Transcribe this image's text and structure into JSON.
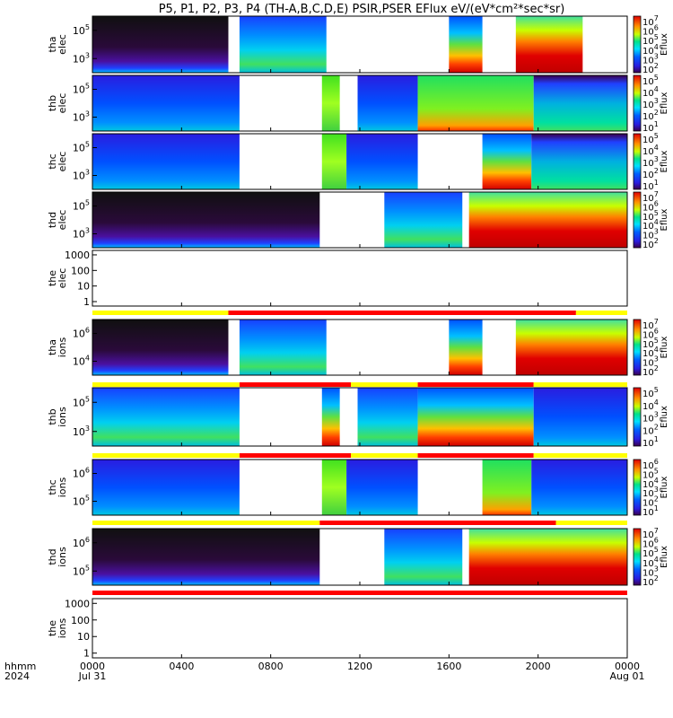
{
  "title": "P5, P1, P2, P3, P4 (TH-A,B,C,D,E) PSIR,PSER EFlux eV/(eV*cm²*sec*sr)",
  "x_axis": {
    "row1_label": "hhmm",
    "row2_label": "2024",
    "ticks": [
      {
        "hour": 0,
        "top": "0000",
        "bottom": "Jul 31"
      },
      {
        "hour": 4,
        "top": "0400",
        "bottom": ""
      },
      {
        "hour": 8,
        "top": "0800",
        "bottom": ""
      },
      {
        "hour": 12,
        "top": "1200",
        "bottom": ""
      },
      {
        "hour": 16,
        "top": "1600",
        "bottom": ""
      },
      {
        "hour": 20,
        "top": "2000",
        "bottom": ""
      },
      {
        "hour": 24,
        "top": "0000",
        "bottom": "Aug 01"
      }
    ]
  },
  "colors": {
    "mode_yellow": "#ffff00",
    "mode_red": "#ff0000",
    "no_data": "#ffffff",
    "colormap": [
      "#3a004d",
      "#5a00a6",
      "#2a1de0",
      "#0060ff",
      "#00b8ff",
      "#00f0f0",
      "#00e08a",
      "#40e020",
      "#c8ff00",
      "#ffd000",
      "#ff7a00",
      "#ff0000",
      "#c00000"
    ]
  },
  "chart_data": {
    "type": "heatmap",
    "x_unit": "hour of day",
    "x_range": [
      0,
      24
    ],
    "panels": [
      {
        "id": "tha-elec",
        "ylabel_1": "tha",
        "ylabel_2": "elec",
        "yticks": [
          {
            "label": "10",
            "exp": "5"
          },
          {
            "label": "10",
            "exp": "3"
          }
        ],
        "colorbar": {
          "label": "Eflux",
          "ticks": [
            {
              "label": "10",
              "exp": "7"
            },
            {
              "label": "10",
              "exp": "6"
            },
            {
              "label": "10",
              "exp": "5"
            },
            {
              "label": "10",
              "exp": "4"
            },
            {
              "label": "10",
              "exp": "3"
            },
            {
              "label": "10",
              "exp": "2"
            }
          ]
        },
        "segments": [
          {
            "start": 0.0,
            "end": 6.1,
            "pattern": "dark"
          },
          {
            "start": 6.6,
            "end": 10.5,
            "pattern": "cyan_green"
          },
          {
            "start": 16.0,
            "end": 17.5,
            "pattern": "warm_bottom"
          },
          {
            "start": 19.0,
            "end": 22.0,
            "pattern": "hot_wave"
          }
        ]
      },
      {
        "id": "thb-elec",
        "ylabel_1": "thb",
        "ylabel_2": "elec",
        "yticks": [
          {
            "label": "10",
            "exp": "5"
          },
          {
            "label": "10",
            "exp": "3"
          }
        ],
        "colorbar": {
          "label": "Eflux",
          "ticks": [
            {
              "label": "10",
              "exp": "5"
            },
            {
              "label": "10",
              "exp": "4"
            },
            {
              "label": "10",
              "exp": "3"
            },
            {
              "label": "10",
              "exp": "2"
            },
            {
              "label": "10",
              "exp": "1"
            }
          ]
        },
        "segments": [
          {
            "start": 0.0,
            "end": 6.6,
            "pattern": "blue"
          },
          {
            "start": 10.3,
            "end": 11.1,
            "pattern": "green_strip"
          },
          {
            "start": 11.9,
            "end": 14.6,
            "pattern": "blue"
          },
          {
            "start": 14.6,
            "end": 19.8,
            "pattern": "green"
          },
          {
            "start": 19.8,
            "end": 24.0,
            "pattern": "teal"
          }
        ]
      },
      {
        "id": "thc-elec",
        "ylabel_1": "thc",
        "ylabel_2": "elec",
        "yticks": [
          {
            "label": "10",
            "exp": "5"
          },
          {
            "label": "10",
            "exp": "3"
          }
        ],
        "colorbar": {
          "label": "Eflux",
          "ticks": [
            {
              "label": "10",
              "exp": "5"
            },
            {
              "label": "10",
              "exp": "4"
            },
            {
              "label": "10",
              "exp": "3"
            },
            {
              "label": "10",
              "exp": "2"
            },
            {
              "label": "10",
              "exp": "1"
            }
          ]
        },
        "segments": [
          {
            "start": 0.0,
            "end": 6.6,
            "pattern": "blue"
          },
          {
            "start": 10.3,
            "end": 11.4,
            "pattern": "green_strip"
          },
          {
            "start": 11.4,
            "end": 14.6,
            "pattern": "blue"
          },
          {
            "start": 17.5,
            "end": 19.7,
            "pattern": "warm_bottom"
          },
          {
            "start": 19.7,
            "end": 24.0,
            "pattern": "teal"
          }
        ]
      },
      {
        "id": "thd-elec",
        "ylabel_1": "thd",
        "ylabel_2": "elec",
        "yticks": [
          {
            "label": "10",
            "exp": "5"
          },
          {
            "label": "10",
            "exp": "3"
          }
        ],
        "colorbar": {
          "label": "Eflux",
          "ticks": [
            {
              "label": "10",
              "exp": "7"
            },
            {
              "label": "10",
              "exp": "6"
            },
            {
              "label": "10",
              "exp": "5"
            },
            {
              "label": "10",
              "exp": "4"
            },
            {
              "label": "10",
              "exp": "3"
            },
            {
              "label": "10",
              "exp": "2"
            }
          ]
        },
        "segments": [
          {
            "start": 0.0,
            "end": 10.2,
            "pattern": "dark"
          },
          {
            "start": 13.1,
            "end": 16.6,
            "pattern": "cyan_green"
          },
          {
            "start": 16.9,
            "end": 24.0,
            "pattern": "hot_wave"
          }
        ]
      },
      {
        "id": "the-elec",
        "ylabel_1": "the",
        "ylabel_2": "elec",
        "line_plot": true,
        "yticks": [
          {
            "label": "1000",
            "exp": ""
          },
          {
            "label": "100",
            "exp": ""
          },
          {
            "label": "10",
            "exp": ""
          },
          {
            "label": "1",
            "exp": ""
          }
        ],
        "segments": []
      },
      {
        "id": "tha-ions",
        "ylabel_1": "tha",
        "ylabel_2": "ions",
        "yticks": [
          {
            "label": "10",
            "exp": "6"
          },
          {
            "label": "10",
            "exp": "4"
          }
        ],
        "colorbar": {
          "label": "Eflux",
          "ticks": [
            {
              "label": "10",
              "exp": "7"
            },
            {
              "label": "10",
              "exp": "6"
            },
            {
              "label": "10",
              "exp": "5"
            },
            {
              "label": "10",
              "exp": "4"
            },
            {
              "label": "10",
              "exp": "3"
            },
            {
              "label": "10",
              "exp": "2"
            }
          ]
        },
        "segments": [
          {
            "start": 0.0,
            "end": 6.1,
            "pattern": "dark"
          },
          {
            "start": 6.6,
            "end": 10.5,
            "pattern": "cyan_green"
          },
          {
            "start": 16.0,
            "end": 17.5,
            "pattern": "warm_bottom"
          },
          {
            "start": 19.0,
            "end": 24.0,
            "pattern": "hot_wave"
          }
        ]
      },
      {
        "id": "thb-ions",
        "ylabel_1": "thb",
        "ylabel_2": "ions",
        "yticks": [
          {
            "label": "10",
            "exp": "5"
          },
          {
            "label": "10",
            "exp": "3"
          }
        ],
        "colorbar": {
          "label": "Eflux",
          "ticks": [
            {
              "label": "10",
              "exp": "5"
            },
            {
              "label": "10",
              "exp": "4"
            },
            {
              "label": "10",
              "exp": "3"
            },
            {
              "label": "10",
              "exp": "2"
            },
            {
              "label": "10",
              "exp": "1"
            }
          ]
        },
        "segments": [
          {
            "start": 0.0,
            "end": 6.6,
            "pattern": "cyan_green"
          },
          {
            "start": 10.3,
            "end": 11.1,
            "pattern": "warm_bottom"
          },
          {
            "start": 11.9,
            "end": 14.6,
            "pattern": "cyan_green"
          },
          {
            "start": 14.6,
            "end": 19.8,
            "pattern": "warm_bottom"
          },
          {
            "start": 19.8,
            "end": 24.0,
            "pattern": "blue"
          }
        ]
      },
      {
        "id": "thc-ions",
        "ylabel_1": "thc",
        "ylabel_2": "ions",
        "yticks": [
          {
            "label": "10",
            "exp": "6"
          },
          {
            "label": "10",
            "exp": "5"
          }
        ],
        "colorbar": {
          "label": "Eflux",
          "ticks": [
            {
              "label": "10",
              "exp": "6"
            },
            {
              "label": "10",
              "exp": "5"
            },
            {
              "label": "10",
              "exp": "4"
            },
            {
              "label": "10",
              "exp": "3"
            },
            {
              "label": "10",
              "exp": "2"
            },
            {
              "label": "10",
              "exp": "1"
            }
          ]
        },
        "segments": [
          {
            "start": 0.0,
            "end": 6.6,
            "pattern": "blue"
          },
          {
            "start": 10.3,
            "end": 11.4,
            "pattern": "green_strip"
          },
          {
            "start": 11.4,
            "end": 14.6,
            "pattern": "blue"
          },
          {
            "start": 17.5,
            "end": 19.7,
            "pattern": "green"
          },
          {
            "start": 19.7,
            "end": 24.0,
            "pattern": "blue"
          }
        ]
      },
      {
        "id": "thd-ions",
        "ylabel_1": "thd",
        "ylabel_2": "ions",
        "yticks": [
          {
            "label": "10",
            "exp": "6"
          },
          {
            "label": "10",
            "exp": "5"
          }
        ],
        "colorbar": {
          "label": "Eflux",
          "ticks": [
            {
              "label": "10",
              "exp": "7"
            },
            {
              "label": "10",
              "exp": "6"
            },
            {
              "label": "10",
              "exp": "5"
            },
            {
              "label": "10",
              "exp": "4"
            },
            {
              "label": "10",
              "exp": "3"
            },
            {
              "label": "10",
              "exp": "2"
            }
          ]
        },
        "segments": [
          {
            "start": 0.0,
            "end": 10.2,
            "pattern": "dark"
          },
          {
            "start": 13.1,
            "end": 16.6,
            "pattern": "cyan_green"
          },
          {
            "start": 16.9,
            "end": 24.0,
            "pattern": "hot_wave"
          }
        ]
      },
      {
        "id": "the-ions",
        "ylabel_1": "the",
        "ylabel_2": "ions",
        "line_plot": true,
        "yticks": [
          {
            "label": "1000",
            "exp": ""
          },
          {
            "label": "100",
            "exp": ""
          },
          {
            "label": "10",
            "exp": ""
          },
          {
            "label": "1",
            "exp": ""
          }
        ],
        "segments": []
      }
    ],
    "mode_bars": [
      {
        "id": "mode-bar-1",
        "segments": [
          {
            "start": 0,
            "end": 6.1,
            "mode": "yellow"
          },
          {
            "start": 6.1,
            "end": 21.7,
            "mode": "red"
          },
          {
            "start": 21.7,
            "end": 24,
            "mode": "yellow"
          }
        ]
      },
      {
        "id": "mode-bar-2",
        "segments": [
          {
            "start": 0,
            "end": 6.6,
            "mode": "yellow"
          },
          {
            "start": 6.6,
            "end": 11.6,
            "mode": "red"
          },
          {
            "start": 11.6,
            "end": 14.6,
            "mode": "yellow"
          },
          {
            "start": 14.6,
            "end": 19.8,
            "mode": "red"
          },
          {
            "start": 19.8,
            "end": 24,
            "mode": "yellow"
          }
        ]
      },
      {
        "id": "mode-bar-3",
        "segments": [
          {
            "start": 0,
            "end": 6.6,
            "mode": "yellow"
          },
          {
            "start": 6.6,
            "end": 11.6,
            "mode": "red"
          },
          {
            "start": 11.6,
            "end": 14.6,
            "mode": "yellow"
          },
          {
            "start": 14.6,
            "end": 19.8,
            "mode": "red"
          },
          {
            "start": 19.8,
            "end": 24,
            "mode": "yellow"
          }
        ]
      },
      {
        "id": "mode-bar-4",
        "segments": [
          {
            "start": 0,
            "end": 10.2,
            "mode": "yellow"
          },
          {
            "start": 10.2,
            "end": 20.8,
            "mode": "red"
          },
          {
            "start": 20.8,
            "end": 24,
            "mode": "yellow"
          }
        ]
      },
      {
        "id": "mode-bar-5",
        "segments": [
          {
            "start": 0,
            "end": 24,
            "mode": "red"
          }
        ]
      }
    ]
  }
}
